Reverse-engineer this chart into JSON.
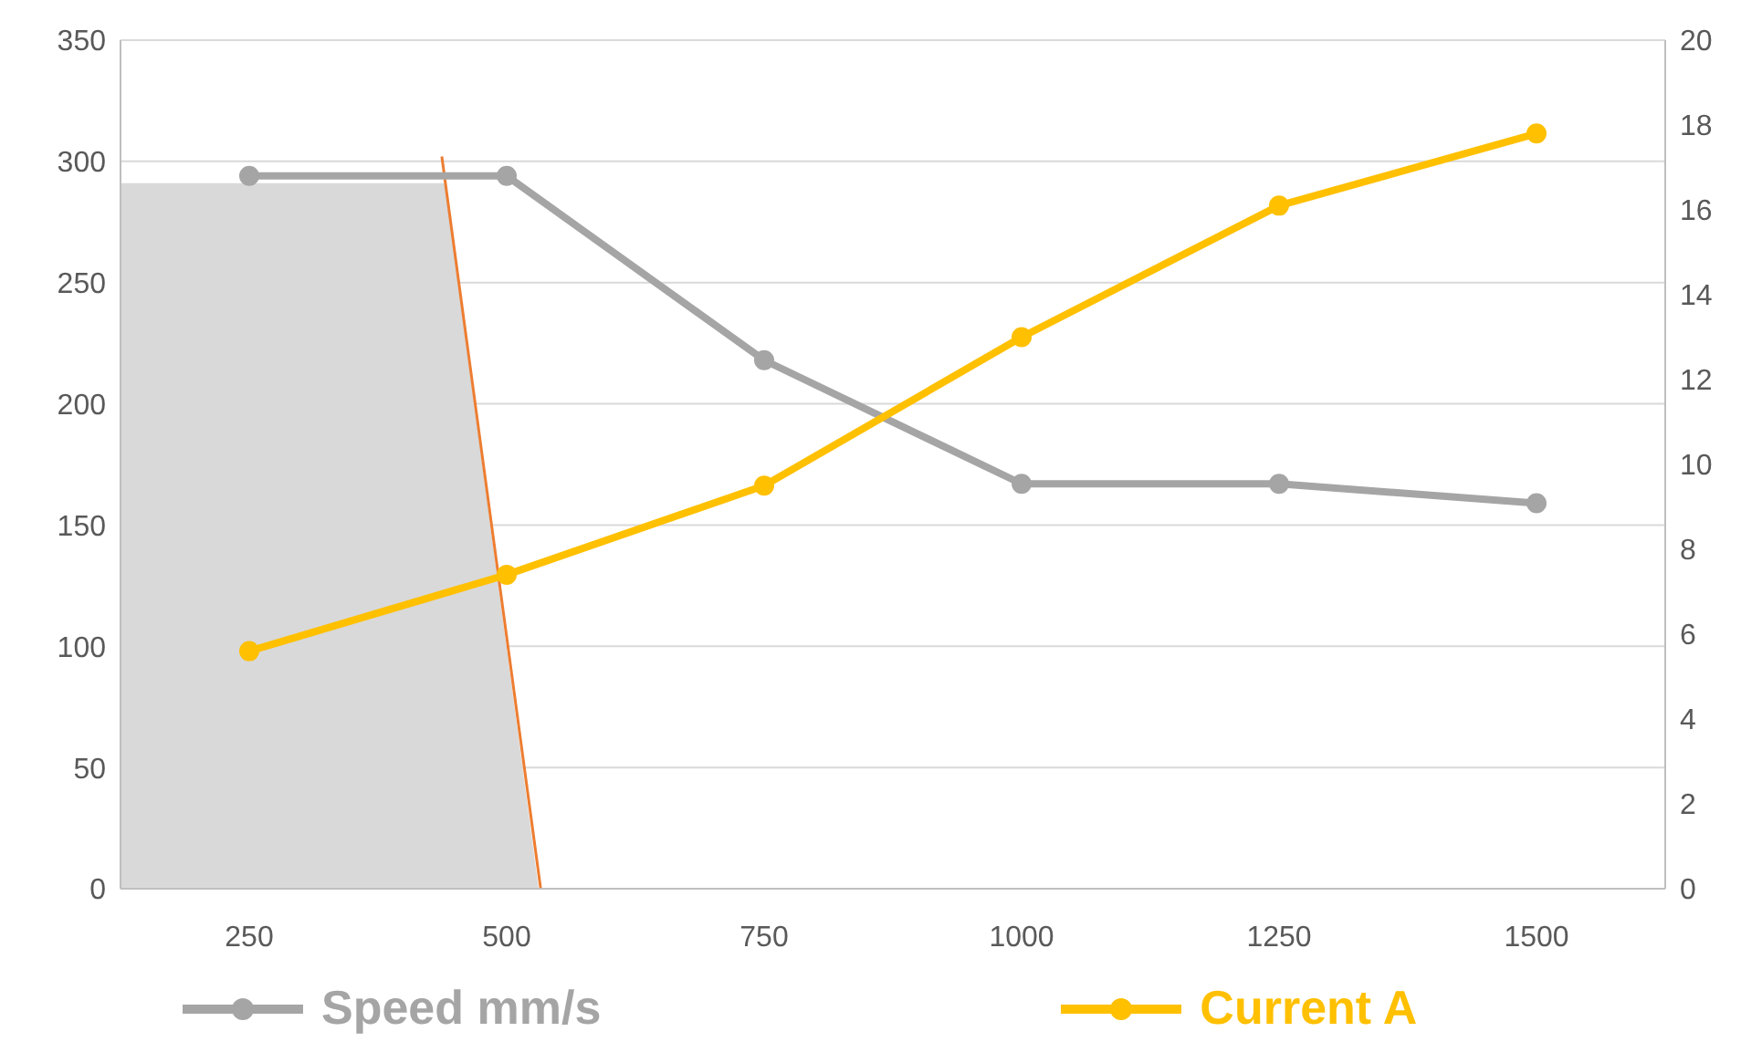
{
  "chart_data": {
    "type": "line",
    "x": [
      250,
      500,
      750,
      1000,
      1250,
      1500
    ],
    "xlim": [
      125,
      1625
    ],
    "xticks": [
      250,
      500,
      750,
      1000,
      1250,
      1500
    ],
    "ylim": [
      0,
      350
    ],
    "yticks": [
      0,
      50,
      100,
      150,
      200,
      250,
      300,
      350
    ],
    "y2lim": [
      0,
      20
    ],
    "y2ticks": [
      0,
      2,
      4,
      6,
      8,
      10,
      12,
      14,
      16,
      18,
      20
    ],
    "grid": "y",
    "legend": "bottom",
    "marker": "circle",
    "series": [
      {
        "type": "area",
        "color": "#d9d9d9",
        "x": [
          125,
          440,
          531
        ],
        "values": [
          291,
          291,
          0
        ],
        "marker": "none"
      },
      {
        "type": "line",
        "color": "#ed7d31",
        "x": [
          437,
          533
        ],
        "values": [
          302,
          0
        ],
        "marker": "none"
      },
      {
        "name": "Speed mm/s",
        "color": "#a5a5a5",
        "values": [
          294,
          294,
          218,
          167,
          167,
          159
        ]
      },
      {
        "name": "Current A",
        "color": "#ffc000",
        "axis": "y2",
        "values": [
          5.6,
          7.4,
          9.5,
          13.0,
          16.1,
          17.8
        ]
      }
    ]
  }
}
